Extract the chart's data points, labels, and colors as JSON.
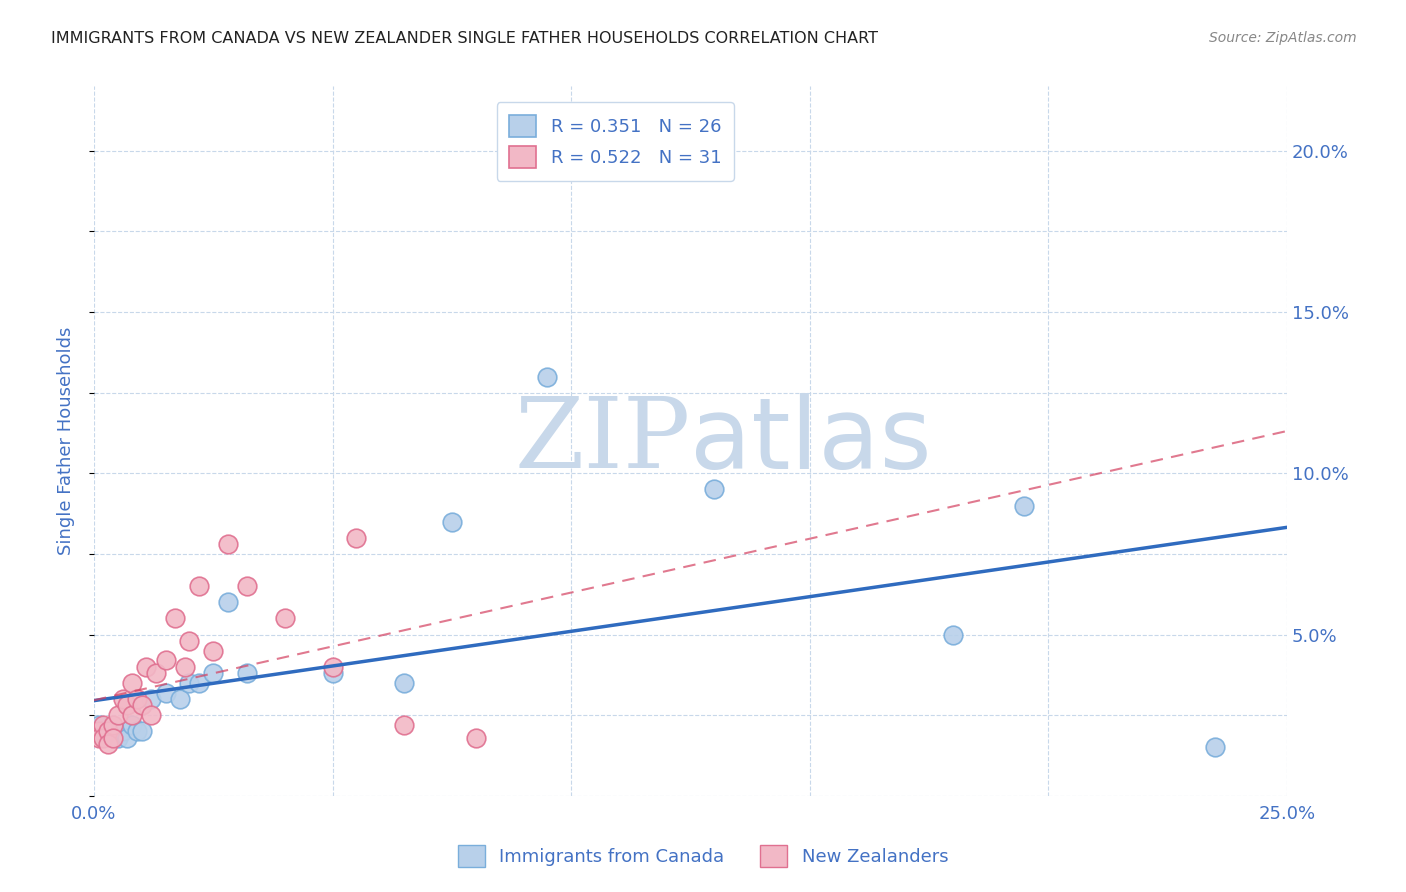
{
  "title": "IMMIGRANTS FROM CANADA VS NEW ZEALANDER SINGLE FATHER HOUSEHOLDS CORRELATION CHART",
  "source": "Source: ZipAtlas.com",
  "ylabel": "Single Father Households",
  "xlim": [
    0.0,
    0.25
  ],
  "ylim": [
    0.0,
    0.22
  ],
  "yticks": [
    0.0,
    0.05,
    0.1,
    0.15,
    0.2
  ],
  "ytick_labels": [
    "",
    "5.0%",
    "10.0%",
    "15.0%",
    "20.0%"
  ],
  "xticks": [
    0.0,
    0.05,
    0.1,
    0.15,
    0.2,
    0.25
  ],
  "xtick_labels": [
    "0.0%",
    "",
    "",
    "",
    "",
    "25.0%"
  ],
  "legend_entry_canada": "R = 0.351   N = 26",
  "legend_entry_nz": "R = 0.522   N = 31",
  "canada_color": "#b8d0ea",
  "canada_edge_color": "#7aaedb",
  "nz_color": "#f2b8c6",
  "nz_edge_color": "#e07090",
  "trend_canada_color": "#2f6bbf",
  "trend_nz_color": "#d44060",
  "watermark_zip": "ZIP",
  "watermark_atlas": "atlas",
  "watermark_color": "#c8d8ea",
  "background_color": "#ffffff",
  "title_color": "#222222",
  "axis_label_color": "#4472c4",
  "grid_color": "#c8d8ea",
  "canada_x": [
    0.001,
    0.002,
    0.003,
    0.004,
    0.005,
    0.006,
    0.007,
    0.008,
    0.009,
    0.01,
    0.012,
    0.015,
    0.018,
    0.02,
    0.022,
    0.025,
    0.028,
    0.032,
    0.05,
    0.065,
    0.075,
    0.095,
    0.13,
    0.18,
    0.195,
    0.235
  ],
  "canada_y": [
    0.022,
    0.02,
    0.02,
    0.02,
    0.018,
    0.02,
    0.018,
    0.022,
    0.02,
    0.02,
    0.03,
    0.032,
    0.03,
    0.035,
    0.035,
    0.038,
    0.06,
    0.038,
    0.038,
    0.035,
    0.085,
    0.13,
    0.095,
    0.05,
    0.09,
    0.015
  ],
  "nz_x": [
    0.001,
    0.001,
    0.002,
    0.002,
    0.003,
    0.003,
    0.004,
    0.004,
    0.005,
    0.006,
    0.007,
    0.008,
    0.008,
    0.009,
    0.01,
    0.011,
    0.012,
    0.013,
    0.015,
    0.017,
    0.019,
    0.02,
    0.022,
    0.025,
    0.028,
    0.032,
    0.04,
    0.05,
    0.055,
    0.065,
    0.08
  ],
  "nz_y": [
    0.02,
    0.018,
    0.022,
    0.018,
    0.02,
    0.016,
    0.022,
    0.018,
    0.025,
    0.03,
    0.028,
    0.035,
    0.025,
    0.03,
    0.028,
    0.04,
    0.025,
    0.038,
    0.042,
    0.055,
    0.04,
    0.048,
    0.065,
    0.045,
    0.078,
    0.065,
    0.055,
    0.04,
    0.08,
    0.022,
    0.018
  ]
}
